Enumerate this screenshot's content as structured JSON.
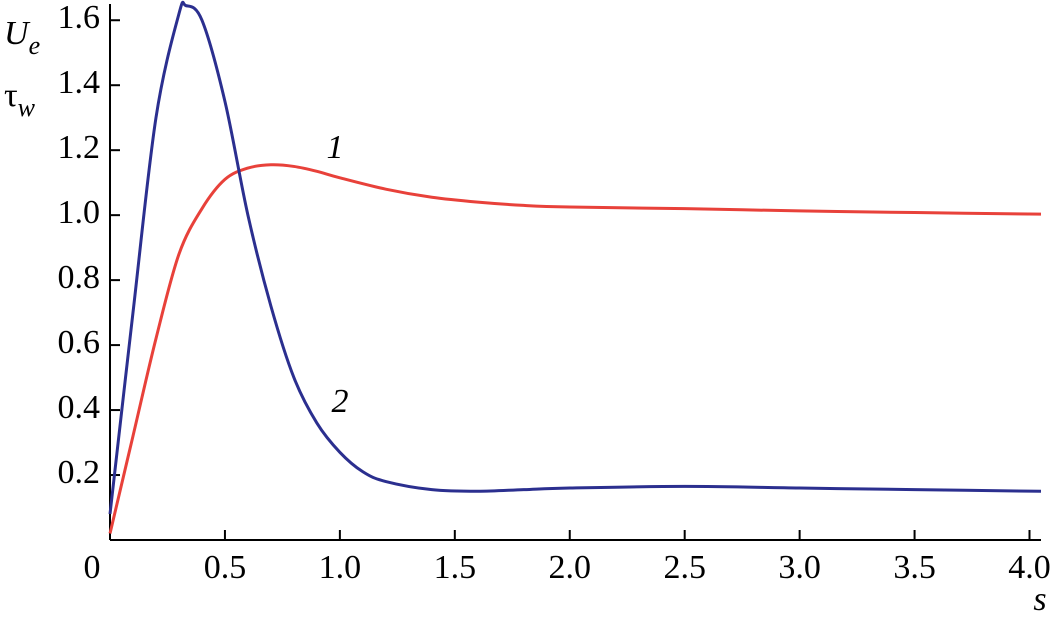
{
  "chart_data": {
    "type": "line",
    "y_labels": [
      {
        "main": "U",
        "sub": "e"
      },
      {
        "main": "τ",
        "sub": "w"
      }
    ],
    "xlabel": "s",
    "xlim": [
      0,
      4.05
    ],
    "ylim": [
      0,
      1.65
    ],
    "xticks": [
      0,
      0.5,
      {
        "value": 1,
        "label": "1.0"
      },
      1.5,
      {
        "value": 2,
        "label": "2.0"
      },
      2.5,
      {
        "value": 3,
        "label": "3.0"
      },
      3.5,
      {
        "value": 4,
        "label": "4.0"
      }
    ],
    "yticks": [
      0.2,
      0.4,
      0.6,
      0.8,
      {
        "value": 1,
        "label": "1.0"
      },
      1.2,
      1.4,
      1.6
    ],
    "series": [
      {
        "name": "1",
        "color": "#e8413a",
        "x": [
          0,
          0.1,
          0.2,
          0.3,
          0.4,
          0.5,
          0.6,
          0.7,
          0.8,
          0.9,
          1.0,
          1.2,
          1.4,
          1.6,
          1.8,
          2.0,
          2.5,
          3.0,
          3.5,
          4.05
        ],
        "values": [
          0.02,
          0.32,
          0.62,
          0.88,
          1.02,
          1.11,
          1.145,
          1.155,
          1.15,
          1.135,
          1.115,
          1.08,
          1.055,
          1.04,
          1.03,
          1.025,
          1.02,
          1.013,
          1.008,
          1.003
        ]
      },
      {
        "name": "2",
        "color": "#2b2f8f",
        "x": [
          0,
          0.1,
          0.2,
          0.3,
          0.33,
          0.4,
          0.5,
          0.6,
          0.7,
          0.8,
          0.9,
          1.0,
          1.1,
          1.2,
          1.4,
          1.6,
          1.8,
          2.0,
          2.5,
          3.0,
          3.5,
          4.05
        ],
        "values": [
          0.08,
          0.7,
          1.3,
          1.62,
          1.645,
          1.6,
          1.35,
          1.0,
          0.72,
          0.5,
          0.36,
          0.27,
          0.21,
          0.18,
          0.155,
          0.15,
          0.155,
          0.16,
          0.165,
          0.16,
          0.155,
          0.15
        ]
      }
    ]
  }
}
